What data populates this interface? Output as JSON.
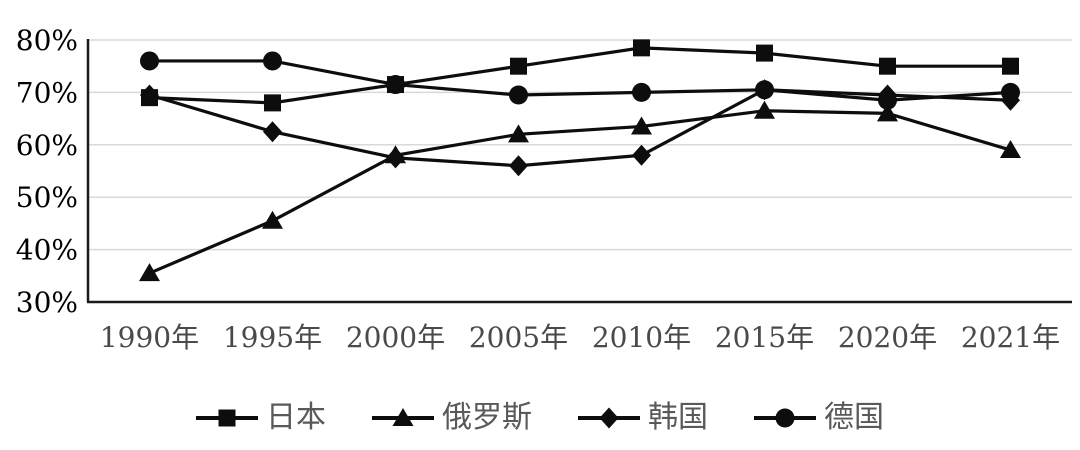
{
  "chart_data": {
    "type": "line",
    "categories": [
      "1990年",
      "1995年",
      "2000年",
      "2005年",
      "2010年",
      "2015年",
      "2020年",
      "2021年"
    ],
    "series": [
      {
        "name": "日本",
        "marker": "square",
        "values": [
          69,
          68,
          71.5,
          75,
          78.5,
          77.5,
          75,
          75
        ]
      },
      {
        "name": "俄罗斯",
        "marker": "triangle",
        "values": [
          35.5,
          45.5,
          58,
          62,
          63.5,
          66.5,
          66,
          59
        ]
      },
      {
        "name": "韩国",
        "marker": "diamond",
        "values": [
          69.5,
          62.5,
          57.5,
          56,
          58,
          70.5,
          69.5,
          68.5
        ]
      },
      {
        "name": "德国",
        "marker": "circle",
        "values": [
          76,
          76,
          71.5,
          69.5,
          70,
          70.5,
          68.5,
          70
        ]
      }
    ],
    "title": "",
    "xlabel": "",
    "ylabel": "",
    "ylim": [
      30,
      80
    ],
    "y_tick_step": 10,
    "y_tick_labels": [
      "80%",
      "70%",
      "60%",
      "50%",
      "40%",
      "30%"
    ],
    "grid": "horizontal",
    "legend_position": "bottom",
    "colors": {
      "series_line": "#0d0d0d",
      "marker_fill": "#0d0d0d",
      "gridline": "#d9d9d9",
      "axis_line": "#1a1a1a",
      "y_tick_text": "#000000",
      "x_tick_text": "#4a4a4a",
      "legend_text": "#595959",
      "background": "#ffffff"
    }
  }
}
